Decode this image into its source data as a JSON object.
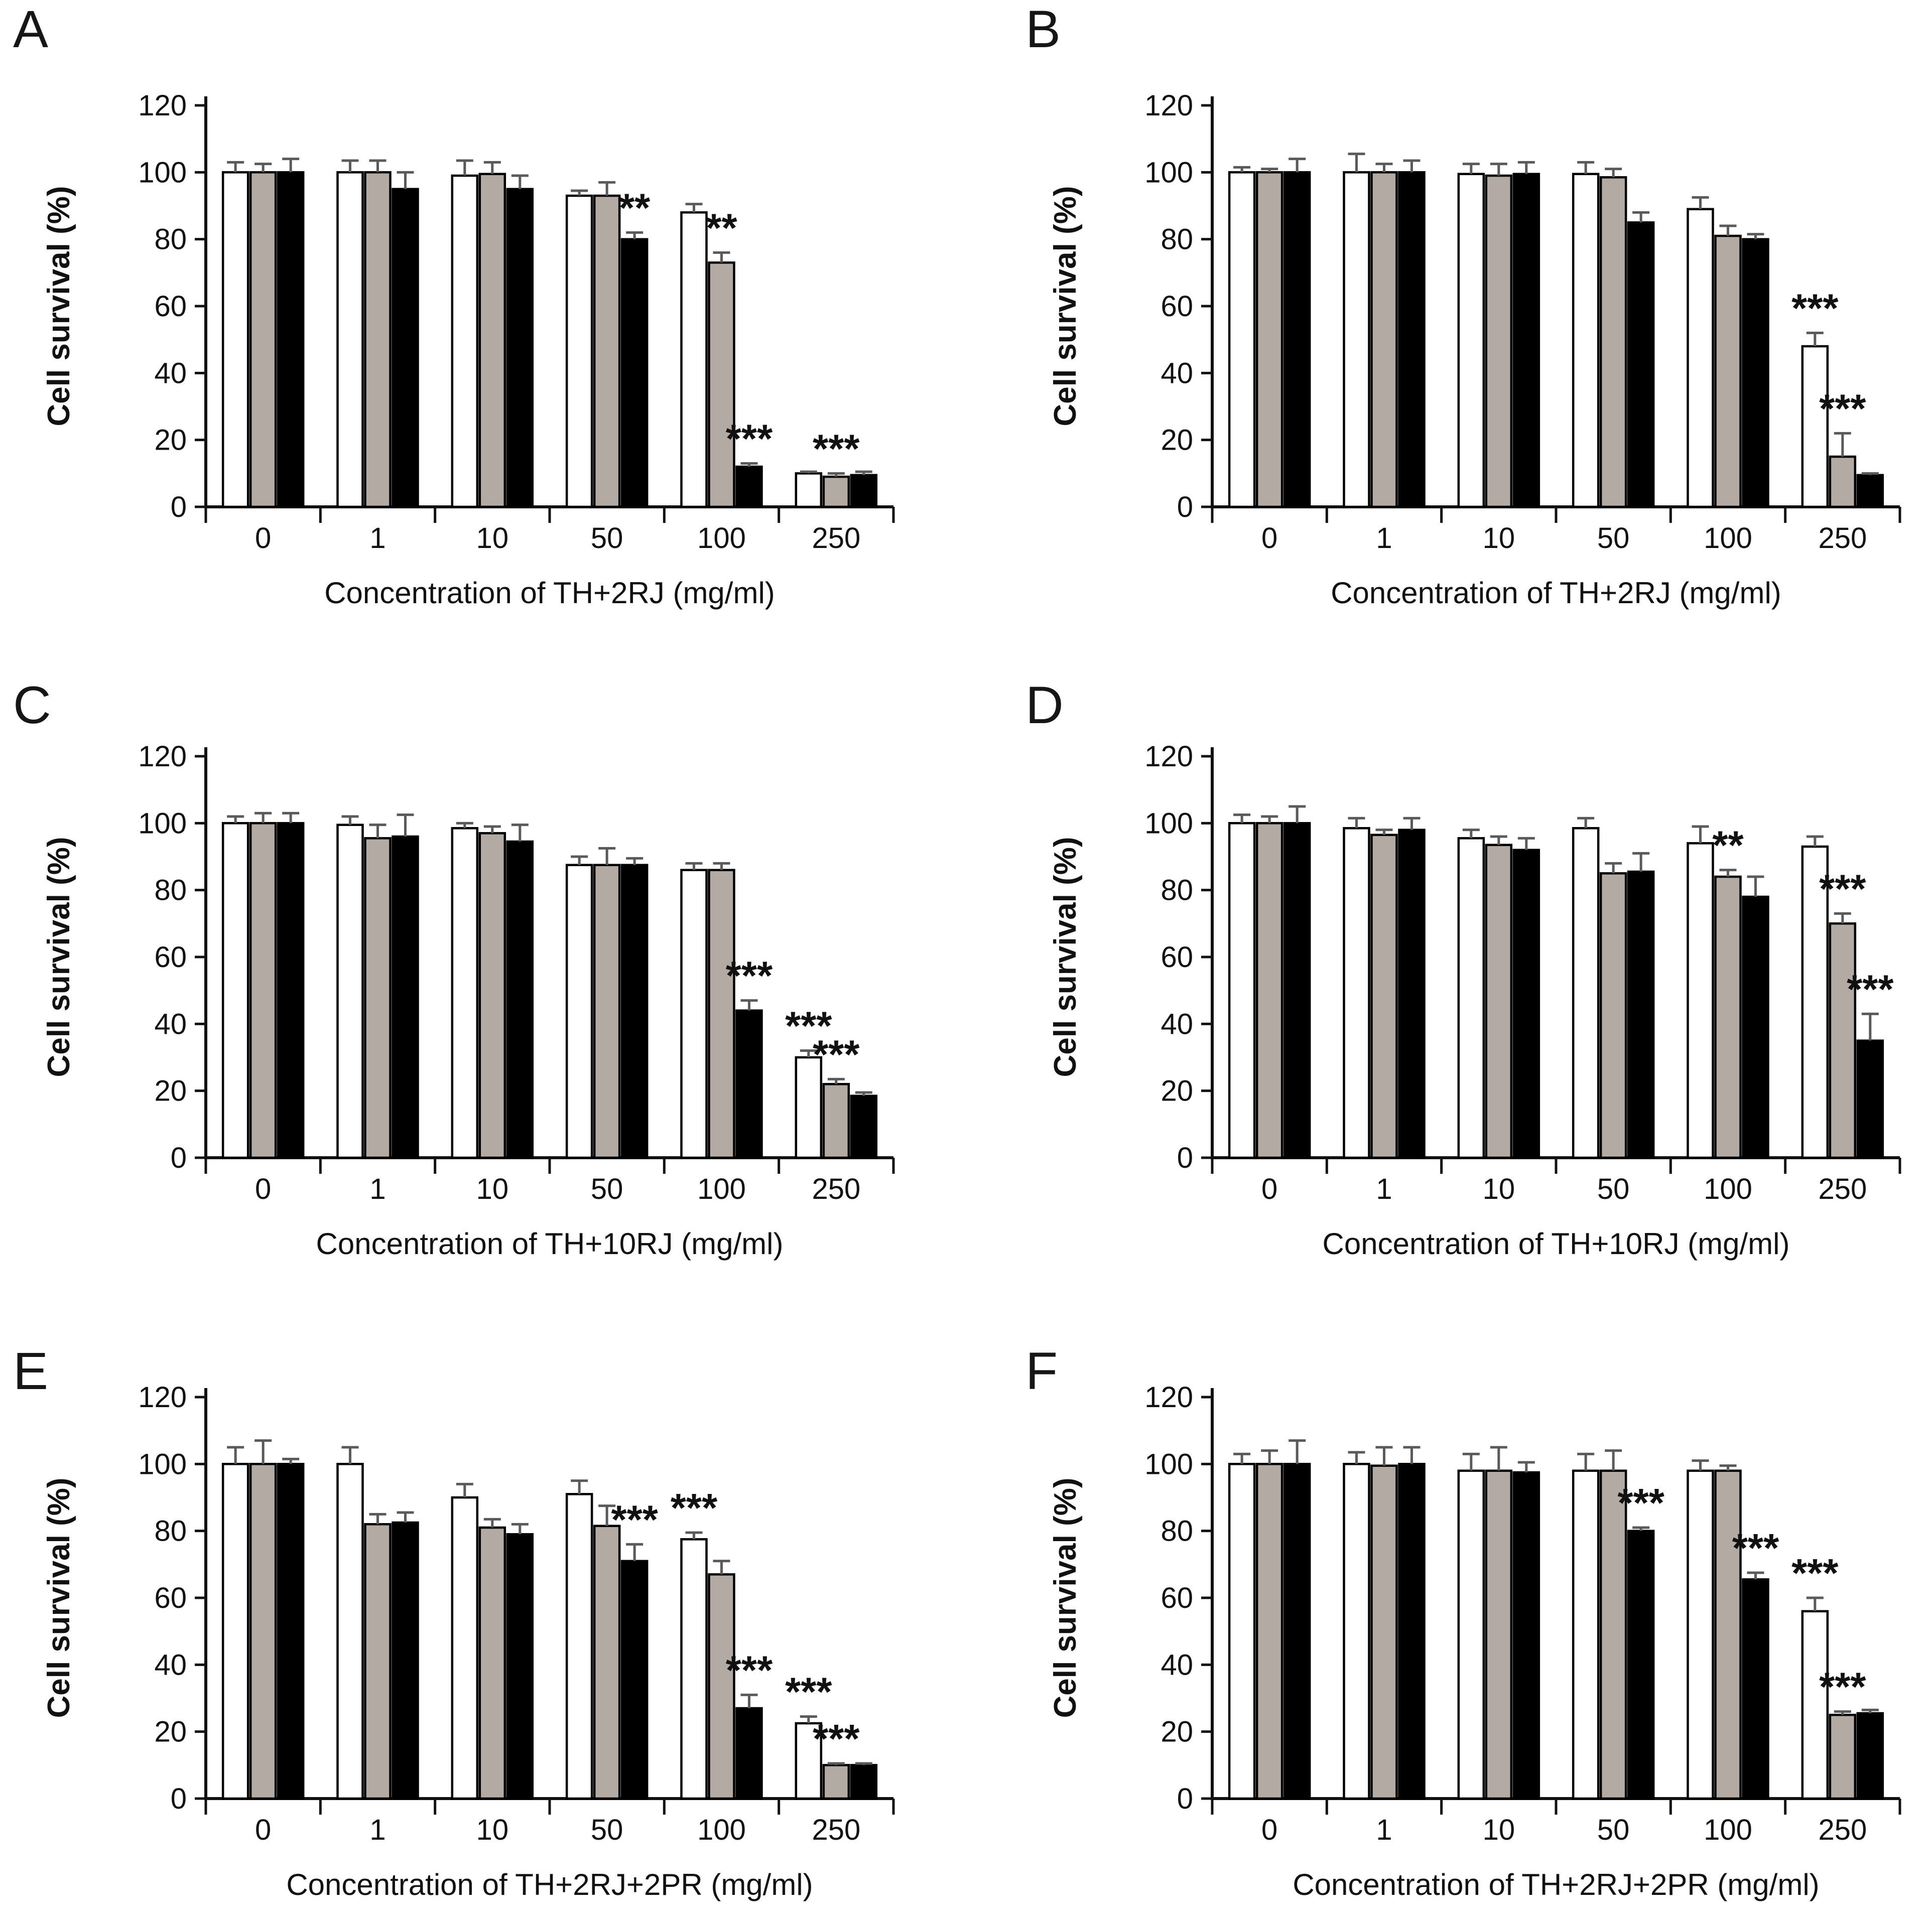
{
  "figure": {
    "panel_letters": [
      "A",
      "B",
      "C",
      "D",
      "E",
      "F"
    ],
    "bar_outline_color": "#000000",
    "error_bar_color": "#5a5a5a",
    "axis_color": "#111111"
  },
  "chart_data": [
    {
      "type": "bar",
      "panel_label": "A",
      "title": "",
      "xlabel": "Concentration of TH+2RJ (mg/ml)",
      "ylabel": "Cell survival (%)",
      "ylim": [
        0,
        120
      ],
      "yticks": [
        0,
        20,
        40,
        60,
        80,
        100,
        120
      ],
      "categories": [
        "0",
        "1",
        "10",
        "50",
        "100",
        "250"
      ],
      "grid": false,
      "legend": null,
      "series": [
        {
          "name": "white-bars",
          "fill": "#ffffff",
          "values": [
            100,
            100,
            99,
            93,
            88,
            10
          ],
          "errors": [
            3,
            3.5,
            4.5,
            1.5,
            2.5,
            0.5
          ],
          "sig": [
            "",
            "",
            "",
            "",
            "",
            ""
          ]
        },
        {
          "name": "gray-bars",
          "fill": "#b3aba3",
          "values": [
            100,
            100,
            99.5,
            93,
            73,
            9
          ],
          "errors": [
            2.5,
            3.5,
            3.5,
            4,
            3,
            1
          ],
          "sig": [
            "",
            "",
            "",
            "",
            "**",
            "***"
          ]
        },
        {
          "name": "black-bars",
          "fill": "#000000",
          "values": [
            100,
            95,
            95,
            80,
            12,
            9.5
          ],
          "errors": [
            4,
            5,
            4,
            2,
            1,
            1
          ],
          "sig": [
            "",
            "",
            "",
            "**",
            "***",
            ""
          ]
        }
      ]
    },
    {
      "type": "bar",
      "panel_label": "B",
      "title": "",
      "xlabel": "Concentration of TH+2RJ (mg/ml)",
      "ylabel": "Cell survival (%)",
      "ylim": [
        0,
        120
      ],
      "yticks": [
        0,
        20,
        40,
        60,
        80,
        100,
        120
      ],
      "categories": [
        "0",
        "1",
        "10",
        "50",
        "100",
        "250"
      ],
      "grid": false,
      "legend": null,
      "series": [
        {
          "name": "white-bars",
          "fill": "#ffffff",
          "values": [
            100,
            100,
            99.5,
            99.5,
            89,
            48
          ],
          "errors": [
            1.5,
            5.5,
            3,
            3.5,
            3.5,
            4
          ],
          "sig": [
            "",
            "",
            "",
            "",
            "",
            "***"
          ]
        },
        {
          "name": "gray-bars",
          "fill": "#b3aba3",
          "values": [
            100,
            100,
            99,
            98.5,
            81,
            15
          ],
          "errors": [
            1,
            2.5,
            3.5,
            2.5,
            3,
            7
          ],
          "sig": [
            "",
            "",
            "",
            "",
            "",
            "***"
          ]
        },
        {
          "name": "black-bars",
          "fill": "#000000",
          "values": [
            100,
            100,
            99.5,
            85,
            80,
            9.5
          ],
          "errors": [
            4,
            3.5,
            3.5,
            3,
            1.5,
            0.5
          ],
          "sig": [
            "",
            "",
            "",
            "",
            "",
            ""
          ]
        }
      ]
    },
    {
      "type": "bar",
      "panel_label": "C",
      "title": "",
      "xlabel": "Concentration of TH+10RJ (mg/ml)",
      "ylabel": "Cell survival (%)",
      "ylim": [
        0,
        120
      ],
      "yticks": [
        0,
        20,
        40,
        60,
        80,
        100,
        120
      ],
      "categories": [
        "0",
        "1",
        "10",
        "50",
        "100",
        "250"
      ],
      "grid": false,
      "legend": null,
      "series": [
        {
          "name": "white-bars",
          "fill": "#ffffff",
          "values": [
            100,
            99.5,
            98.5,
            87.5,
            86,
            30
          ],
          "errors": [
            2,
            2.5,
            1.5,
            2.5,
            2,
            2
          ],
          "sig": [
            "",
            "",
            "",
            "",
            "",
            "***"
          ]
        },
        {
          "name": "gray-bars",
          "fill": "#b3aba3",
          "values": [
            100,
            95.5,
            97,
            87.5,
            86,
            22
          ],
          "errors": [
            3,
            4,
            2,
            5,
            2,
            1.5
          ],
          "sig": [
            "",
            "",
            "",
            "",
            "",
            "***"
          ]
        },
        {
          "name": "black-bars",
          "fill": "#000000",
          "values": [
            100,
            96,
            94.5,
            87.5,
            44,
            18.5
          ],
          "errors": [
            3,
            6.5,
            5,
            2,
            3,
            1
          ],
          "sig": [
            "",
            "",
            "",
            "",
            "***",
            ""
          ]
        }
      ]
    },
    {
      "type": "bar",
      "panel_label": "D",
      "title": "",
      "xlabel": "Concentration of TH+10RJ (mg/ml)",
      "ylabel": "Cell survival (%)",
      "ylim": [
        0,
        120
      ],
      "yticks": [
        0,
        20,
        40,
        60,
        80,
        100,
        120
      ],
      "categories": [
        "0",
        "1",
        "10",
        "50",
        "100",
        "250"
      ],
      "grid": false,
      "legend": null,
      "series": [
        {
          "name": "white-bars",
          "fill": "#ffffff",
          "values": [
            100,
            98.5,
            95.5,
            98.5,
            94,
            93
          ],
          "errors": [
            2.5,
            3,
            2.5,
            3,
            5,
            3
          ],
          "sig": [
            "",
            "",
            "",
            "",
            "",
            ""
          ]
        },
        {
          "name": "gray-bars",
          "fill": "#b3aba3",
          "values": [
            100,
            96.5,
            93.5,
            85,
            84,
            70
          ],
          "errors": [
            2,
            1.5,
            2.5,
            3,
            2,
            3
          ],
          "sig": [
            "",
            "",
            "",
            "",
            "**",
            "***"
          ]
        },
        {
          "name": "black-bars",
          "fill": "#000000",
          "values": [
            100,
            98,
            92,
            85.5,
            78,
            35
          ],
          "errors": [
            5,
            3.5,
            3.5,
            5.5,
            6,
            8
          ],
          "sig": [
            "",
            "",
            "",
            "",
            "",
            "***"
          ]
        }
      ]
    },
    {
      "type": "bar",
      "panel_label": "E",
      "title": "",
      "xlabel": "Concentration of TH+2RJ+2PR (mg/ml)",
      "ylabel": "Cell survival (%)",
      "ylim": [
        0,
        120
      ],
      "yticks": [
        0,
        20,
        40,
        60,
        80,
        100,
        120
      ],
      "categories": [
        "0",
        "1",
        "10",
        "50",
        "100",
        "250"
      ],
      "grid": false,
      "legend": null,
      "series": [
        {
          "name": "white-bars",
          "fill": "#ffffff",
          "values": [
            100,
            100,
            90,
            91,
            77.5,
            22.5
          ],
          "errors": [
            5,
            5,
            4,
            4,
            2,
            2
          ],
          "sig": [
            "",
            "",
            "",
            "",
            "***",
            "***"
          ]
        },
        {
          "name": "gray-bars",
          "fill": "#b3aba3",
          "values": [
            100,
            82,
            81,
            81.5,
            67,
            10
          ],
          "errors": [
            7,
            3,
            2.5,
            6,
            4,
            0.5
          ],
          "sig": [
            "",
            "",
            "",
            "",
            "",
            "***"
          ]
        },
        {
          "name": "black-bars",
          "fill": "#000000",
          "values": [
            100,
            82.5,
            79,
            71,
            27,
            10
          ],
          "errors": [
            1.5,
            3,
            3,
            5,
            4,
            0.5
          ],
          "sig": [
            "",
            "",
            "",
            "***",
            "***",
            ""
          ]
        }
      ]
    },
    {
      "type": "bar",
      "panel_label": "F",
      "title": "",
      "xlabel": "Concentration of TH+2RJ+2PR (mg/ml)",
      "ylabel": "Cell survival (%)",
      "ylim": [
        0,
        120
      ],
      "yticks": [
        0,
        20,
        40,
        60,
        80,
        100,
        120
      ],
      "categories": [
        "0",
        "1",
        "10",
        "50",
        "100",
        "250"
      ],
      "grid": false,
      "legend": null,
      "series": [
        {
          "name": "white-bars",
          "fill": "#ffffff",
          "values": [
            100,
            100,
            98,
            98,
            98,
            56
          ],
          "errors": [
            3,
            3.5,
            5,
            5,
            3,
            4
          ],
          "sig": [
            "",
            "",
            "",
            "",
            "",
            "***"
          ]
        },
        {
          "name": "gray-bars",
          "fill": "#b3aba3",
          "values": [
            100,
            99.5,
            98,
            98,
            98,
            25
          ],
          "errors": [
            4,
            5.5,
            7,
            6,
            1.5,
            1
          ],
          "sig": [
            "",
            "",
            "",
            "",
            "",
            "***"
          ]
        },
        {
          "name": "black-bars",
          "fill": "#000000",
          "values": [
            100,
            100,
            97.5,
            80,
            65.5,
            25.5
          ],
          "errors": [
            7,
            5,
            3,
            1,
            2,
            1
          ],
          "sig": [
            "",
            "",
            "",
            "***",
            "***",
            ""
          ]
        }
      ]
    }
  ]
}
